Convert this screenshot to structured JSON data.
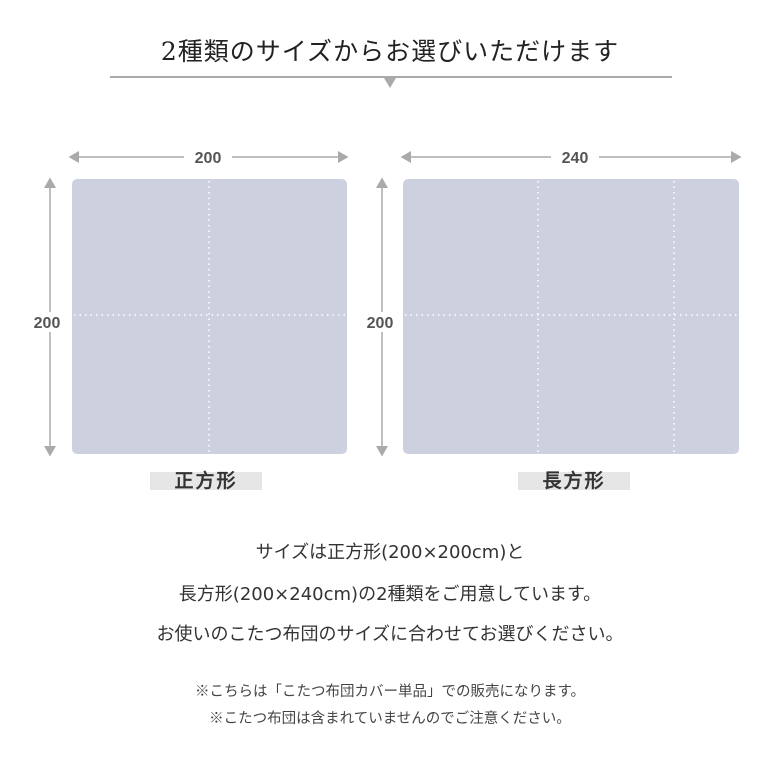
{
  "title": "2種類のサイズからお選びいただけます",
  "sizes": [
    {
      "name": "正方形",
      "width_label": "200",
      "height_label": "200"
    },
    {
      "name": "長方形",
      "width_label": "240",
      "height_label": "200"
    }
  ],
  "colors": {
    "fabric": "#cdd1df",
    "arrow": "#aaaaaa",
    "label_bg": "#e6e6e6"
  },
  "description": [
    "サイズは正方形(200×200cm)と",
    "長方形(200×240cm)の2種類をご用意しています。",
    "お使いのこたつ布団のサイズに合わせてお選びください。"
  ],
  "notes": [
    "※こちらは「こたつ布団カバー単品」での販売になります。",
    "※こたつ布団は含まれていませんのでご注意ください。"
  ]
}
